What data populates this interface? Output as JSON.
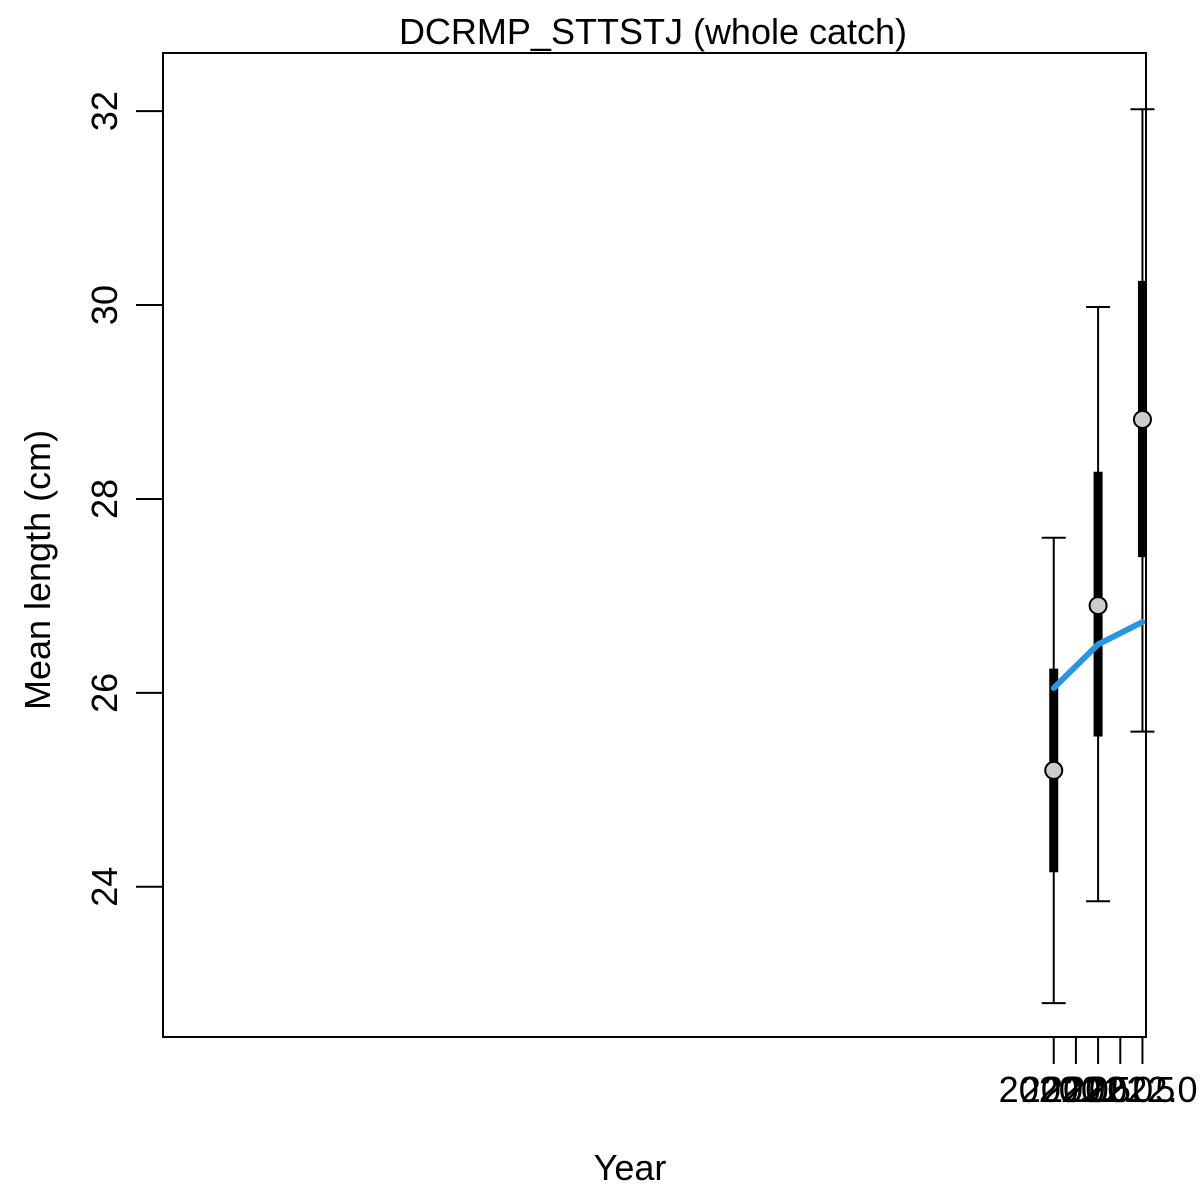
{
  "chart_data": {
    "type": "scatter",
    "title": "DCRMP_STTSTJ (whole catch)",
    "xlabel": "Year",
    "ylabel": "Mean length (cm)",
    "xlim": [
      1999.92,
      2022.08
    ],
    "ylim": [
      22.45,
      32.6
    ],
    "x_ticks": [
      2020.0,
      2020.5,
      2021.0,
      2021.5,
      2022.0
    ],
    "x_tick_labels": [
      "2020.0",
      "2020.5",
      "2021.0",
      "2021.5",
      "2022.0"
    ],
    "y_ticks": [
      24,
      26,
      28,
      30,
      32
    ],
    "y_tick_labels": [
      "24",
      "26",
      "28",
      "30",
      "32"
    ],
    "grid": false,
    "legend": "none",
    "colors": {
      "fit_line": "#2a96e0",
      "point_fill": "#cccccc",
      "point_stroke": "#000000",
      "error_bar": "#000000"
    },
    "points": [
      {
        "x": 2020.0,
        "y": 25.2,
        "ci_inner": [
          24.15,
          26.25
        ],
        "ci_outer": [
          22.8,
          27.6
        ]
      },
      {
        "x": 2021.0,
        "y": 26.9,
        "ci_inner": [
          25.55,
          28.28
        ],
        "ci_outer": [
          23.85,
          29.98
        ]
      },
      {
        "x": 2022.0,
        "y": 28.82,
        "ci_inner": [
          27.4,
          30.25
        ],
        "ci_outer": [
          25.6,
          32.02
        ]
      }
    ],
    "fit_line": {
      "x": [
        2020.0,
        2021.0,
        2022.0
      ],
      "y": [
        26.05,
        26.5,
        26.73
      ]
    }
  }
}
